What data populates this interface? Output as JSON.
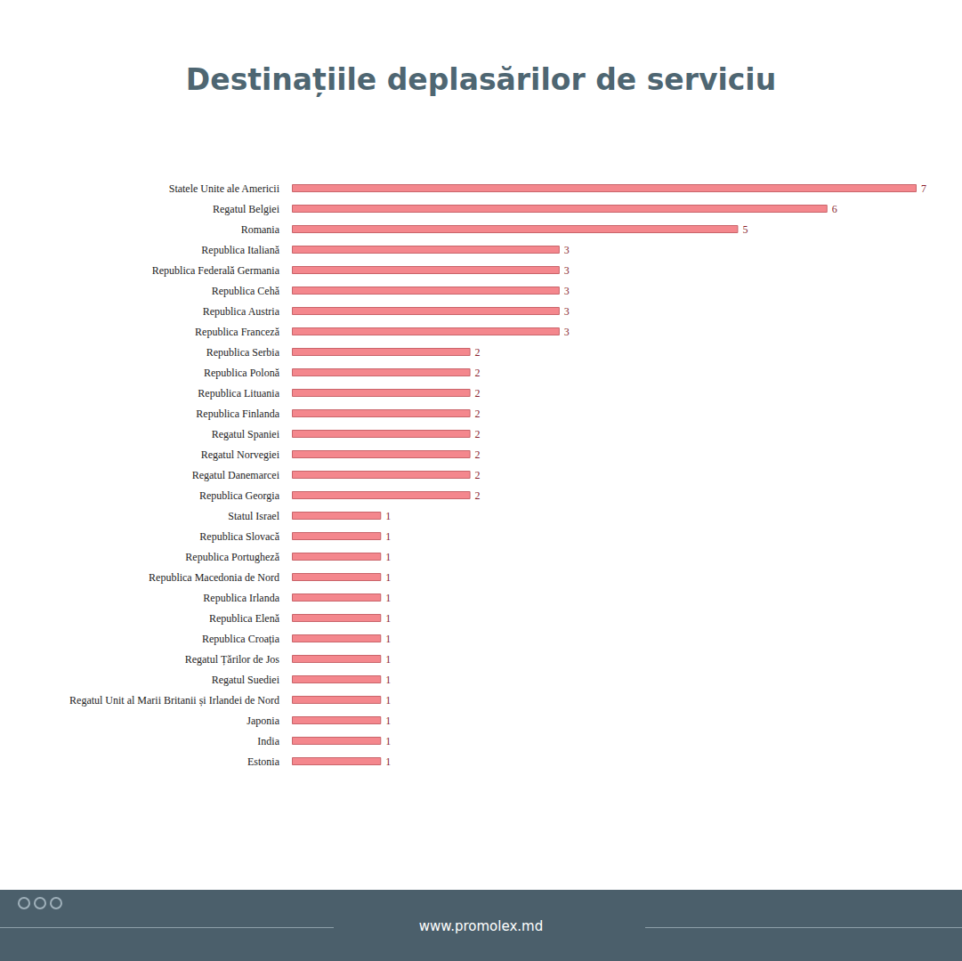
{
  "chart_data": {
    "type": "bar",
    "title": "Destinațiile deplasărilor de serviciu",
    "categories": [
      "Statele Unite ale Americii",
      "Regatul Belgiei",
      "Romania",
      "Republica Italiană",
      "Republica Federală Germania",
      "Republica Cehă",
      "Republica Austria",
      "Republica Franceză",
      "Republica Serbia",
      "Republica Polonă",
      "Republica Lituania",
      "Republica Finlanda",
      "Regatul Spaniei",
      "Regatul Norvegiei",
      "Regatul Danemarcei",
      "Republica Georgia",
      "Statul Israel",
      "Republica Slovacă",
      "Republica Portugheză",
      "Republica Macedonia de Nord",
      "Republica Irlanda",
      "Republica Elenă",
      "Republica Croația",
      "Regatul Țărilor de Jos",
      "Regatul Suediei",
      "Regatul Unit al Marii Britanii și Irlandei de Nord",
      "Japonia",
      "India",
      "Estonia"
    ],
    "values": [
      7,
      6,
      5,
      3,
      3,
      3,
      3,
      3,
      2,
      2,
      2,
      2,
      2,
      2,
      2,
      2,
      1,
      1,
      1,
      1,
      1,
      1,
      1,
      1,
      1,
      1,
      1,
      1,
      1
    ],
    "color": "#f4878d",
    "orientation": "horizontal",
    "data_labels": true,
    "tick_labels": "y",
    "grid": false,
    "xlim": [
      0,
      7
    ],
    "footer": "www.promolex.md"
  }
}
